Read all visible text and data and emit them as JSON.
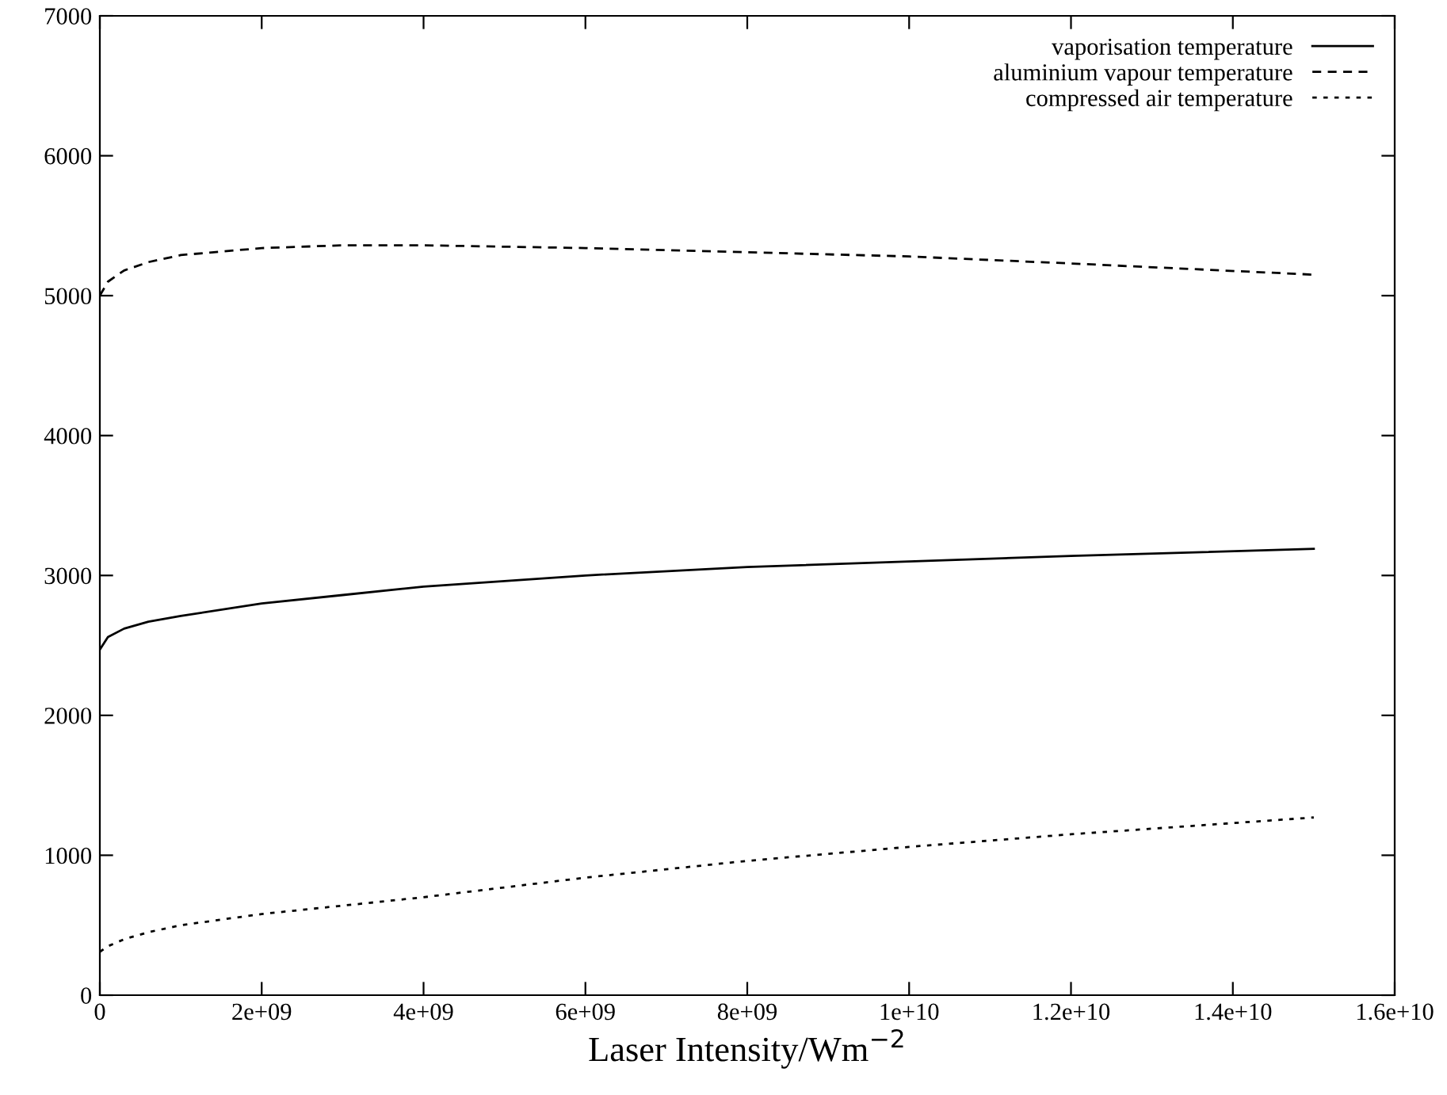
{
  "chart_data": {
    "type": "line",
    "xlabel": "Laser Intensity/Wm$^{−2}$",
    "xlim": [
      0,
      16000000000
    ],
    "xticks": [
      {
        "value": 0,
        "label": "0"
      },
      {
        "value": 2000000000,
        "label": "2e+09"
      },
      {
        "value": 4000000000,
        "label": "4e+09"
      },
      {
        "value": 6000000000,
        "label": "6e+09"
      },
      {
        "value": 8000000000,
        "label": "8e+09"
      },
      {
        "value": 10000000000,
        "label": "1e+10"
      },
      {
        "value": 12000000000,
        "label": "1.2e+10"
      },
      {
        "value": 14000000000,
        "label": "1.4e+10"
      },
      {
        "value": 16000000000,
        "label": "1.6e+10"
      }
    ],
    "ylim": [
      0,
      7000
    ],
    "yticks": [
      0,
      1000,
      2000,
      3000,
      4000,
      5000,
      6000,
      7000
    ],
    "x": [
      0,
      100000000,
      300000000,
      600000000,
      1000000000,
      2000000000,
      3000000000,
      4000000000,
      6000000000,
      8000000000,
      10000000000,
      12000000000,
      15000000000
    ],
    "series": [
      {
        "name": "vaporisation temperature",
        "color": "#000000",
        "line_style": "solid",
        "values": [
          2470,
          2560,
          2620,
          2670,
          2710,
          2800,
          2860,
          2920,
          3000,
          3060,
          3100,
          3140,
          3190
        ]
      },
      {
        "name": "aluminium vapour temperature",
        "color": "#000000",
        "line_style": "dashed",
        "values": [
          5000,
          5100,
          5180,
          5240,
          5290,
          5340,
          5360,
          5360,
          5340,
          5310,
          5280,
          5230,
          5150
        ]
      },
      {
        "name": "compressed air temperature",
        "color": "#000000",
        "line_style": "dotted",
        "values": [
          310,
          350,
          400,
          450,
          500,
          580,
          640,
          700,
          840,
          960,
          1060,
          1150,
          1270
        ]
      }
    ],
    "legend": "top right",
    "grid": false
  }
}
